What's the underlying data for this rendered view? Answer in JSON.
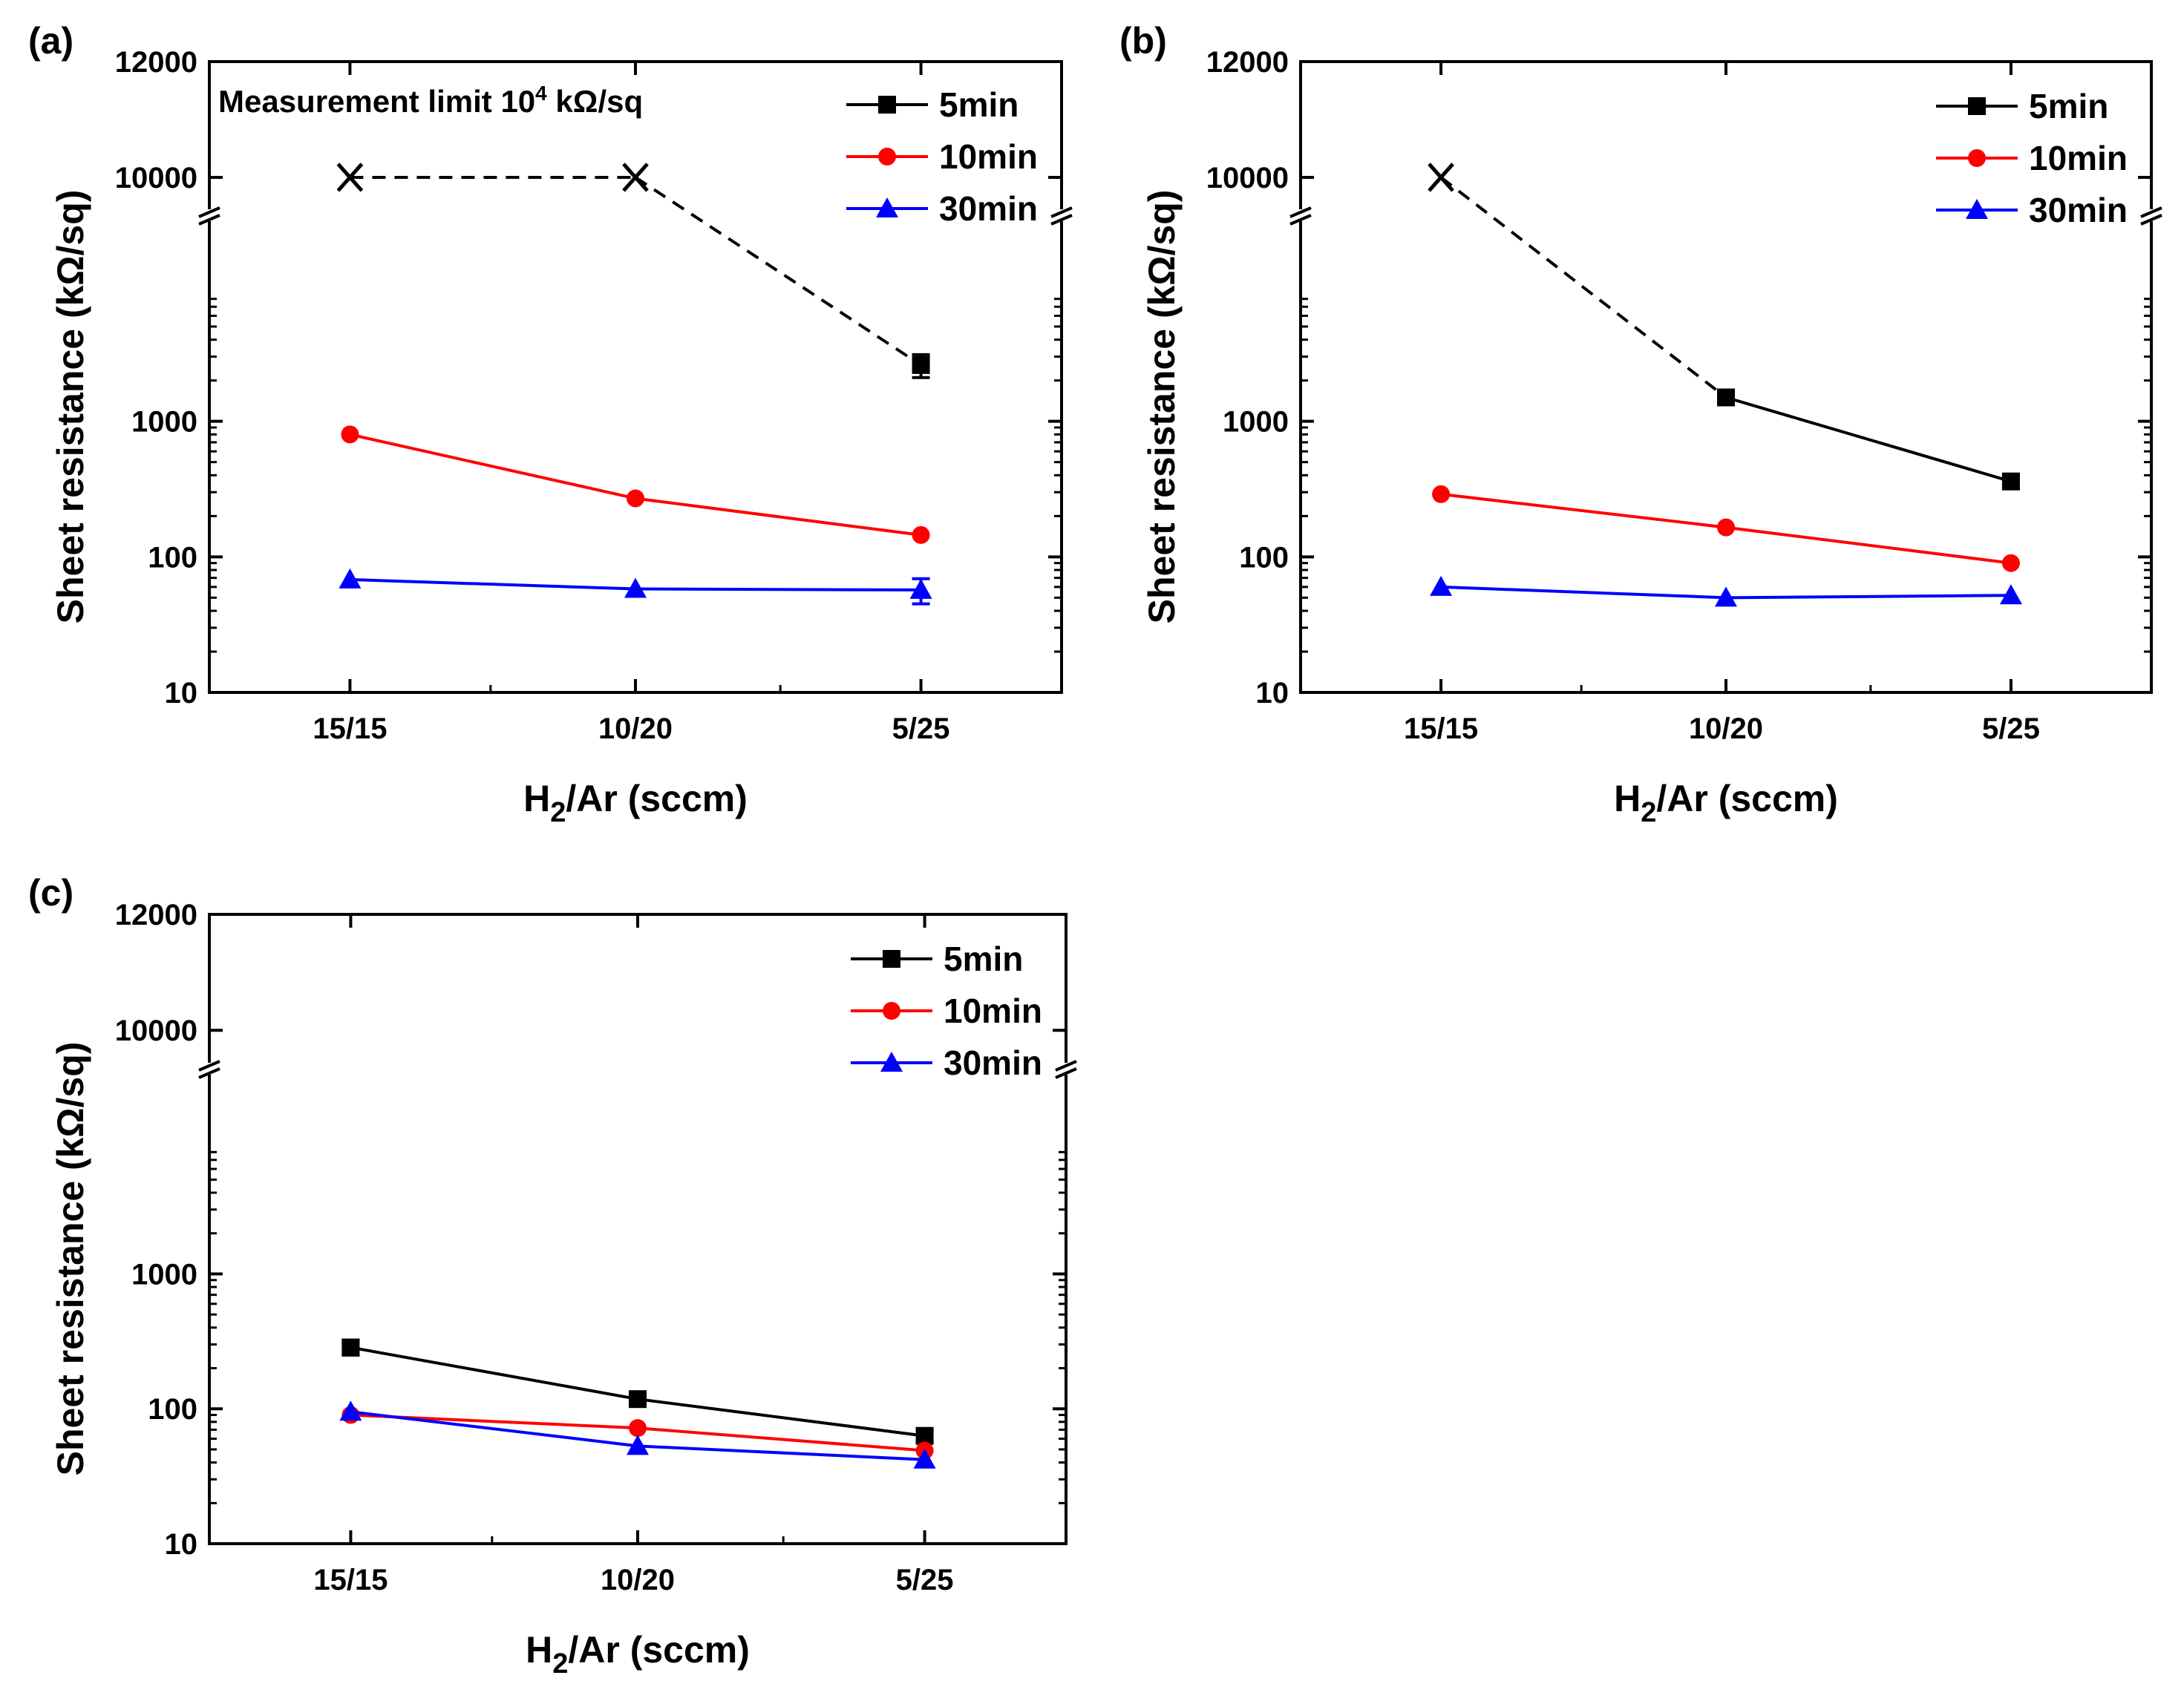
{
  "chart_data": [
    {
      "type": "line",
      "panel_label": "(a)",
      "xlabel_main": "H",
      "xlabel_sub": "2",
      "xlabel_rest": "/Ar (sccm)",
      "ylabel": "Sheet resistance (kΩ/sq)",
      "y_scale": "log with axis break",
      "categories": [
        "15/15",
        "10/20",
        "5/25"
      ],
      "y_ticks_lower": [
        10,
        100,
        1000
      ],
      "y_ticks_upper": [
        10000,
        12000
      ],
      "y_tick_labels": [
        "10",
        "100",
        "1000",
        "10000",
        "12000"
      ],
      "legend_position": "top-right",
      "annotation": {
        "prefix": "Measurement limit  10",
        "sup": "4",
        "suffix": " kΩ/sq"
      },
      "series": [
        {
          "name": "5min",
          "color": "#000000",
          "marker": "square",
          "values": [
            10000,
            10000,
            2600
          ],
          "errors": [
            0,
            0,
            500
          ],
          "limit_points": [
            true,
            true,
            false
          ],
          "dashed_segments": [
            true,
            true
          ]
        },
        {
          "name": "10min",
          "color": "#ff0000",
          "marker": "circle",
          "values": [
            800,
            270,
            145
          ],
          "errors": [
            0,
            0,
            0
          ]
        },
        {
          "name": "30min",
          "color": "#0000ff",
          "marker": "triangle",
          "values": [
            68,
            58,
            57
          ],
          "errors": [
            0,
            0,
            12
          ]
        }
      ]
    },
    {
      "type": "line",
      "panel_label": "(b)",
      "xlabel_main": "H",
      "xlabel_sub": "2",
      "xlabel_rest": "/Ar (sccm)",
      "ylabel": "Sheet resistance (kΩ/sq)",
      "y_scale": "log with axis break",
      "categories": [
        "15/15",
        "10/20",
        "5/25"
      ],
      "y_ticks_lower": [
        10,
        100,
        1000
      ],
      "y_ticks_upper": [
        10000,
        12000
      ],
      "y_tick_labels": [
        "10",
        "100",
        "1000",
        "10000",
        "12000"
      ],
      "legend_position": "top-right",
      "series": [
        {
          "name": "5min",
          "color": "#000000",
          "marker": "square",
          "values": [
            10000,
            1500,
            360
          ],
          "errors": [
            0,
            120,
            40
          ],
          "limit_points": [
            true,
            false,
            false
          ],
          "dashed_segments": [
            true,
            false
          ]
        },
        {
          "name": "10min",
          "color": "#ff0000",
          "marker": "circle",
          "values": [
            290,
            165,
            90
          ],
          "errors": [
            0,
            0,
            0
          ]
        },
        {
          "name": "30min",
          "color": "#0000ff",
          "marker": "triangle",
          "values": [
            60,
            50,
            52
          ],
          "errors": [
            0,
            0,
            0
          ]
        }
      ]
    },
    {
      "type": "line",
      "panel_label": "(c)",
      "xlabel_main": "H",
      "xlabel_sub": "2",
      "xlabel_rest": "/Ar (sccm)",
      "ylabel": "Sheet resistance (kΩ/sq)",
      "y_scale": "log with axis break",
      "categories": [
        "15/15",
        "10/20",
        "5/25"
      ],
      "y_ticks_lower": [
        10,
        100,
        1000
      ],
      "y_ticks_upper": [
        10000,
        12000
      ],
      "y_tick_labels": [
        "10",
        "100",
        "1000",
        "10000",
        "12000"
      ],
      "legend_position": "top-right",
      "series": [
        {
          "name": "5min",
          "color": "#000000",
          "marker": "square",
          "values": [
            285,
            118,
            63
          ],
          "errors": [
            35,
            12,
            6
          ]
        },
        {
          "name": "10min",
          "color": "#ff0000",
          "marker": "circle",
          "values": [
            90,
            72,
            49
          ],
          "errors": [
            0,
            0,
            0
          ]
        },
        {
          "name": "30min",
          "color": "#0000ff",
          "marker": "triangle",
          "values": [
            95,
            53,
            42
          ],
          "errors": [
            0,
            0,
            0
          ]
        }
      ]
    }
  ]
}
